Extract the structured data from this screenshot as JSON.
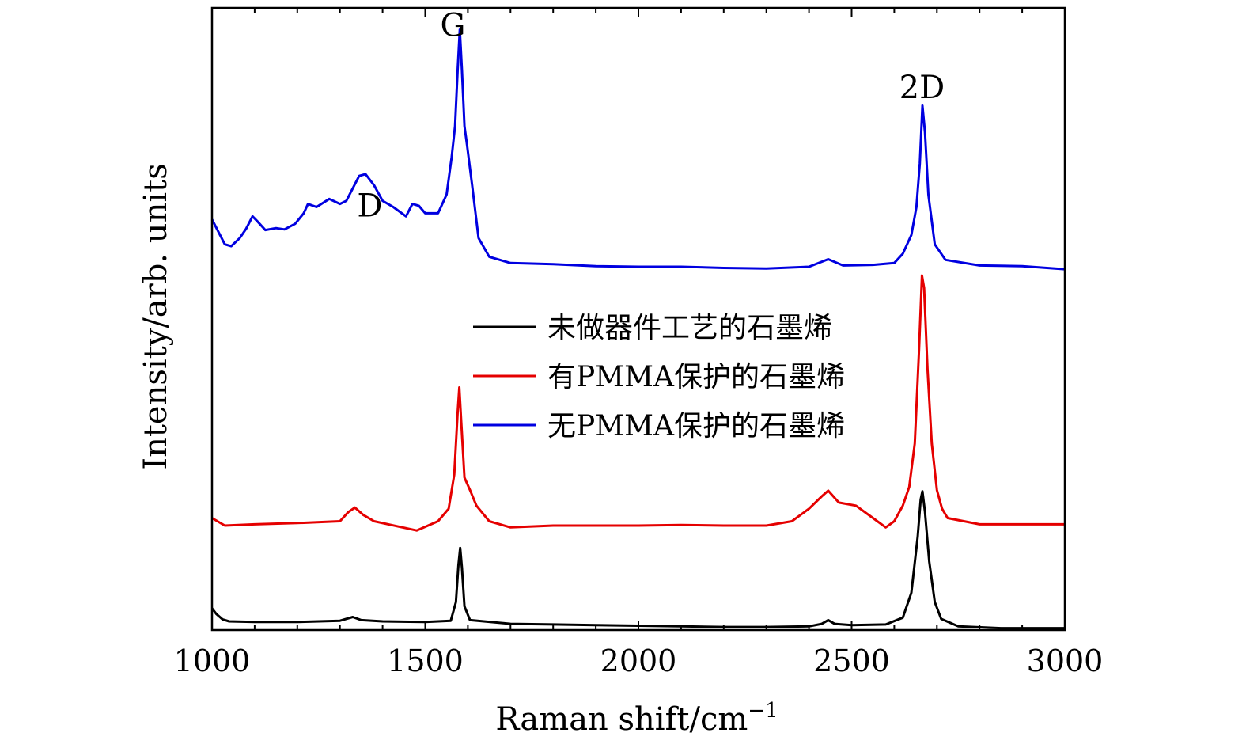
{
  "chart_data": {
    "type": "line",
    "xlabel": "Raman shift/cm",
    "xlabel_superscript": "−1",
    "ylabel": "Intensity/arb. units",
    "xlim": [
      1000,
      3000
    ],
    "ylim": [
      0,
      100
    ],
    "x_ticks": [
      "1000",
      "1500",
      "2000",
      "2500",
      "3000"
    ],
    "y_ticks_labeled": false,
    "legend_position": "center-right",
    "annotations": [
      {
        "text": "D",
        "x": 1370,
        "y": 66.5
      },
      {
        "text": "G",
        "x": 1565,
        "y": 95.5
      },
      {
        "text": "2D",
        "x": 2665,
        "y": 85.5
      }
    ],
    "series": [
      {
        "name": "未做器件工艺的石墨烯",
        "color": "#000000",
        "points": [
          [
            1000,
            3.5
          ],
          [
            1010,
            2.6
          ],
          [
            1025,
            1.7
          ],
          [
            1040,
            1.4
          ],
          [
            1100,
            1.3
          ],
          [
            1200,
            1.3
          ],
          [
            1300,
            1.5
          ],
          [
            1330,
            2.1
          ],
          [
            1350,
            1.6
          ],
          [
            1400,
            1.4
          ],
          [
            1500,
            1.3
          ],
          [
            1560,
            1.5
          ],
          [
            1572,
            4.5
          ],
          [
            1578,
            10.5
          ],
          [
            1582,
            13.2
          ],
          [
            1586,
            10.0
          ],
          [
            1592,
            3.8
          ],
          [
            1605,
            1.6
          ],
          [
            1700,
            1.0
          ],
          [
            1800,
            0.9
          ],
          [
            1900,
            0.8
          ],
          [
            2000,
            0.7
          ],
          [
            2100,
            0.6
          ],
          [
            2200,
            0.5
          ],
          [
            2300,
            0.5
          ],
          [
            2400,
            0.6
          ],
          [
            2430,
            1.0
          ],
          [
            2445,
            1.6
          ],
          [
            2460,
            1.0
          ],
          [
            2500,
            0.8
          ],
          [
            2580,
            0.9
          ],
          [
            2620,
            2.0
          ],
          [
            2640,
            6.0
          ],
          [
            2655,
            15.0
          ],
          [
            2662,
            21.0
          ],
          [
            2666,
            22.3
          ],
          [
            2672,
            19.0
          ],
          [
            2682,
            11.0
          ],
          [
            2695,
            4.5
          ],
          [
            2710,
            1.8
          ],
          [
            2750,
            0.6
          ],
          [
            2850,
            0.3
          ],
          [
            3000,
            0.3
          ]
        ]
      },
      {
        "name": "有PMMA保护的石墨烯",
        "color": "#e50000",
        "points": [
          [
            1000,
            18.0
          ],
          [
            1030,
            16.8
          ],
          [
            1100,
            17.0
          ],
          [
            1200,
            17.2
          ],
          [
            1300,
            17.5
          ],
          [
            1320,
            19.0
          ],
          [
            1335,
            19.7
          ],
          [
            1355,
            18.5
          ],
          [
            1380,
            17.5
          ],
          [
            1420,
            16.9
          ],
          [
            1480,
            16.0
          ],
          [
            1530,
            17.5
          ],
          [
            1555,
            19.5
          ],
          [
            1568,
            25.0
          ],
          [
            1576,
            35.0
          ],
          [
            1580,
            39.0
          ],
          [
            1584,
            34.0
          ],
          [
            1592,
            24.5
          ],
          [
            1605,
            22.5
          ],
          [
            1620,
            20.0
          ],
          [
            1650,
            17.5
          ],
          [
            1700,
            16.5
          ],
          [
            1800,
            16.8
          ],
          [
            1900,
            16.8
          ],
          [
            2000,
            16.8
          ],
          [
            2100,
            16.9
          ],
          [
            2200,
            16.8
          ],
          [
            2300,
            16.8
          ],
          [
            2360,
            17.5
          ],
          [
            2400,
            19.5
          ],
          [
            2430,
            21.5
          ],
          [
            2445,
            22.4
          ],
          [
            2470,
            20.5
          ],
          [
            2510,
            20.0
          ],
          [
            2550,
            18.0
          ],
          [
            2580,
            16.5
          ],
          [
            2600,
            17.5
          ],
          [
            2620,
            20.0
          ],
          [
            2635,
            23.0
          ],
          [
            2648,
            30.0
          ],
          [
            2658,
            45.0
          ],
          [
            2665,
            57.0
          ],
          [
            2670,
            55.0
          ],
          [
            2678,
            42.0
          ],
          [
            2688,
            30.0
          ],
          [
            2700,
            22.5
          ],
          [
            2712,
            19.5
          ],
          [
            2725,
            18.0
          ],
          [
            2800,
            17.0
          ],
          [
            2900,
            17.0
          ],
          [
            3000,
            17.0
          ]
        ]
      },
      {
        "name": "无PMMA保护的石墨烯",
        "color": "#0000e0",
        "points": [
          [
            1000,
            66.0
          ],
          [
            1030,
            62.0
          ],
          [
            1045,
            61.7
          ],
          [
            1065,
            63.0
          ],
          [
            1080,
            64.5
          ],
          [
            1095,
            66.5
          ],
          [
            1105,
            65.8
          ],
          [
            1125,
            64.3
          ],
          [
            1150,
            64.6
          ],
          [
            1170,
            64.4
          ],
          [
            1195,
            65.3
          ],
          [
            1215,
            67.0
          ],
          [
            1225,
            68.5
          ],
          [
            1245,
            68.0
          ],
          [
            1275,
            69.3
          ],
          [
            1300,
            68.5
          ],
          [
            1315,
            69.0
          ],
          [
            1330,
            71.0
          ],
          [
            1345,
            73.0
          ],
          [
            1360,
            73.3
          ],
          [
            1380,
            71.5
          ],
          [
            1400,
            69.0
          ],
          [
            1425,
            68.0
          ],
          [
            1455,
            66.5
          ],
          [
            1470,
            68.5
          ],
          [
            1485,
            68.2
          ],
          [
            1500,
            67.0
          ],
          [
            1530,
            67.0
          ],
          [
            1550,
            70.0
          ],
          [
            1562,
            76.0
          ],
          [
            1570,
            81.0
          ],
          [
            1576,
            90.0
          ],
          [
            1581,
            96.5
          ],
          [
            1586,
            90.0
          ],
          [
            1592,
            81.0
          ],
          [
            1598,
            78.0
          ],
          [
            1610,
            71.5
          ],
          [
            1625,
            63.0
          ],
          [
            1650,
            60.0
          ],
          [
            1700,
            59.0
          ],
          [
            1800,
            58.8
          ],
          [
            1900,
            58.5
          ],
          [
            2000,
            58.4
          ],
          [
            2100,
            58.4
          ],
          [
            2200,
            58.2
          ],
          [
            2300,
            58.1
          ],
          [
            2400,
            58.4
          ],
          [
            2445,
            59.6
          ],
          [
            2480,
            58.6
          ],
          [
            2550,
            58.7
          ],
          [
            2600,
            59.0
          ],
          [
            2620,
            60.5
          ],
          [
            2640,
            63.5
          ],
          [
            2652,
            68.0
          ],
          [
            2660,
            75.0
          ],
          [
            2666,
            84.3
          ],
          [
            2672,
            80.0
          ],
          [
            2680,
            70.0
          ],
          [
            2695,
            62.0
          ],
          [
            2720,
            59.5
          ],
          [
            2800,
            58.6
          ],
          [
            2900,
            58.5
          ],
          [
            3000,
            58.0
          ]
        ]
      }
    ]
  }
}
